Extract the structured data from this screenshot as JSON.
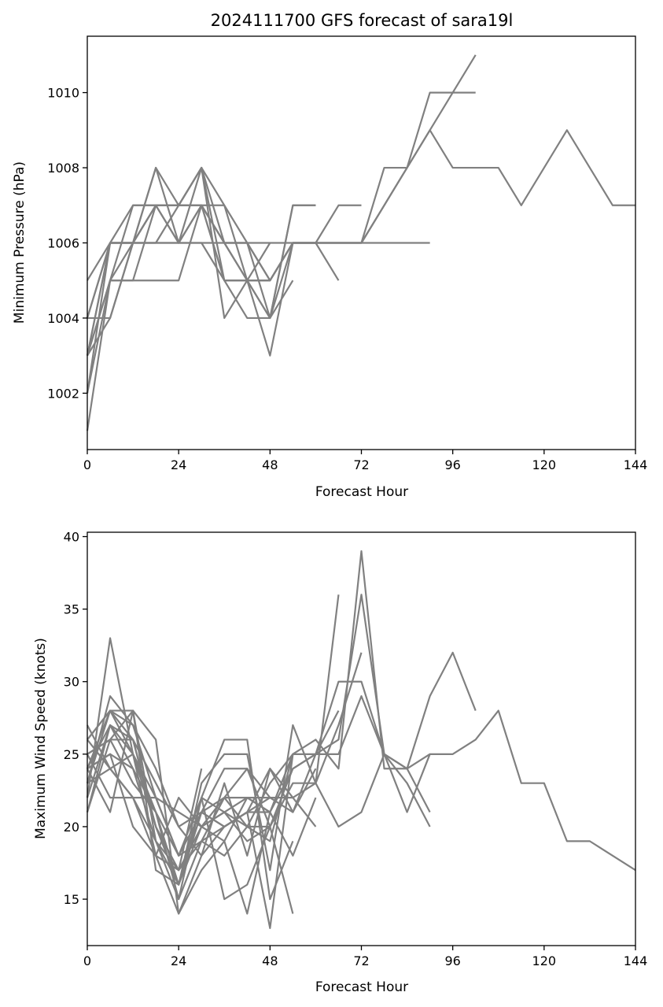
{
  "chart_data": [
    {
      "type": "line",
      "title": "2024111700 GFS forecast of sara19l",
      "xlabel": "Forecast Hour",
      "ylabel": "Minimum Pressure (hPa)",
      "xlim": [
        0,
        144
      ],
      "ylim": [
        1000.5,
        1011.5
      ],
      "xticks": [
        0,
        24,
        48,
        72,
        96,
        120,
        144
      ],
      "yticks": [
        1002,
        1004,
        1006,
        1008,
        1010
      ],
      "line_color": "#808080",
      "series": [
        {
          "x": [
            0,
            6,
            12,
            18,
            24,
            30,
            36,
            42,
            48,
            54,
            60,
            66,
            72,
            78,
            84,
            90,
            96,
            102
          ],
          "y": [
            1003,
            1006,
            1006,
            1006,
            1006,
            1006,
            1005,
            1005,
            1005,
            1006,
            1006,
            1006,
            1006,
            1008,
            1008,
            1010,
            1010,
            1010
          ]
        },
        {
          "x": [
            0,
            6,
            12,
            18,
            24,
            30,
            36,
            42,
            48,
            54,
            60,
            66,
            72,
            78,
            84,
            90,
            96,
            102,
            108,
            114,
            120,
            126,
            132,
            138,
            144
          ],
          "y": [
            1001,
            1005,
            1005,
            1007,
            1007,
            1007,
            1005,
            1005,
            1004,
            1006,
            1006,
            1006,
            1006,
            1007,
            1008,
            1009,
            1008,
            1008,
            1008,
            1007,
            1008,
            1009,
            1008,
            1007,
            1007
          ]
        },
        {
          "x": [
            0,
            6,
            12,
            18,
            24,
            30,
            36,
            42,
            48,
            54,
            60,
            66,
            72,
            78,
            84,
            90
          ],
          "y": [
            1002,
            1006,
            1006,
            1006,
            1006,
            1006,
            1006,
            1006,
            1006,
            1006,
            1006,
            1006,
            1006,
            1006,
            1006,
            1006
          ]
        },
        {
          "x": [
            0,
            6,
            12,
            18,
            24,
            30,
            36,
            42,
            48,
            54,
            60,
            66,
            72,
            78,
            84,
            90,
            96,
            102
          ],
          "y": [
            1004,
            1006,
            1006,
            1008,
            1007,
            1007,
            1006,
            1006,
            1005,
            1006,
            1006,
            1006,
            1006,
            1007,
            1008,
            1009,
            1010,
            1011
          ]
        },
        {
          "x": [
            0,
            6,
            12,
            18,
            24,
            30,
            36,
            42,
            48,
            54,
            60,
            66
          ],
          "y": [
            1005,
            1006,
            1007,
            1007,
            1007,
            1008,
            1006,
            1005,
            1005,
            1006,
            1006,
            1005
          ]
        },
        {
          "x": [
            0,
            6,
            12,
            18,
            24,
            30,
            36,
            42,
            48,
            54,
            60,
            66,
            72
          ],
          "y": [
            1003,
            1006,
            1006,
            1007,
            1006,
            1007,
            1005,
            1005,
            1005,
            1006,
            1006,
            1007,
            1007
          ]
        },
        {
          "x": [
            0,
            6,
            12,
            18,
            24,
            30,
            36,
            42,
            48,
            54,
            60
          ],
          "y": [
            1002,
            1005,
            1006,
            1007,
            1007,
            1008,
            1005,
            1004,
            1004,
            1007,
            1007
          ]
        },
        {
          "x": [
            0,
            6,
            12,
            18,
            24,
            30,
            36,
            42,
            48,
            54,
            60
          ],
          "y": [
            1003,
            1005,
            1005,
            1005,
            1005,
            1007,
            1007,
            1005,
            1004,
            1007,
            1007
          ]
        },
        {
          "x": [
            0,
            6,
            12,
            18,
            24,
            30,
            36,
            42,
            48,
            54
          ],
          "y": [
            1004,
            1004,
            1006,
            1007,
            1006,
            1007,
            1006,
            1005,
            1003,
            1006
          ]
        },
        {
          "x": [
            0,
            6,
            12,
            18,
            24,
            30,
            36,
            42,
            48,
            54
          ],
          "y": [
            1003,
            1005,
            1007,
            1007,
            1007,
            1007,
            1006,
            1006,
            1004,
            1005
          ]
        },
        {
          "x": [
            0,
            6,
            12,
            18,
            24,
            30,
            36,
            42,
            48
          ],
          "y": [
            1003,
            1004,
            1006,
            1008,
            1006,
            1008,
            1004,
            1005,
            1006
          ]
        },
        {
          "x": [
            0,
            6,
            12,
            18,
            24,
            30,
            36,
            42,
            48
          ],
          "y": [
            1004,
            1006,
            1006,
            1006,
            1007,
            1008,
            1007,
            1006,
            1005
          ]
        }
      ]
    },
    {
      "type": "line",
      "title": "",
      "xlabel": "Forecast Hour",
      "ylabel": "Maximum Wind Speed (knots)",
      "xlim": [
        0,
        144
      ],
      "ylim": [
        11.8,
        40.3
      ],
      "xticks": [
        0,
        24,
        48,
        72,
        96,
        120,
        144
      ],
      "yticks": [
        15,
        20,
        25,
        30,
        35,
        40
      ],
      "line_color": "#808080",
      "series": [
        {
          "x": [
            0,
            6,
            12,
            18,
            24,
            30,
            36,
            42,
            48,
            54,
            60,
            66,
            72,
            78,
            84,
            90,
            96,
            102,
            108,
            114,
            120,
            126,
            132,
            138,
            144
          ],
          "y": [
            26,
            28,
            26,
            20,
            17,
            19,
            20,
            21,
            21,
            24,
            25,
            25,
            29,
            25,
            24,
            25,
            25,
            26,
            28,
            23,
            23,
            19,
            19,
            18,
            17
          ]
        },
        {
          "x": [
            0,
            6,
            12,
            18,
            24,
            30,
            36,
            42,
            48,
            54,
            60,
            66,
            72,
            78,
            84,
            90,
            96,
            102
          ],
          "y": [
            24,
            27,
            24,
            19,
            16,
            20,
            21,
            22,
            21,
            25,
            26,
            24,
            39,
            24,
            24,
            29,
            32,
            28
          ]
        },
        {
          "x": [
            0,
            6,
            12,
            18,
            24,
            30,
            36,
            42,
            48,
            54,
            60,
            66,
            72,
            78,
            84,
            90
          ],
          "y": [
            22,
            33,
            25,
            18,
            14,
            18,
            20,
            21,
            22,
            22,
            23,
            20,
            21,
            25,
            24,
            21
          ]
        },
        {
          "x": [
            0,
            6,
            12,
            18,
            24,
            30,
            36,
            42,
            48,
            54,
            60,
            66,
            72,
            78,
            84,
            90
          ],
          "y": [
            25,
            26,
            23,
            21,
            15,
            19,
            22,
            24,
            20,
            24,
            25,
            30,
            30,
            25,
            21,
            25
          ]
        },
        {
          "x": [
            0,
            6,
            12,
            18,
            24,
            30,
            36,
            42,
            48,
            54,
            60,
            66,
            72,
            78,
            84,
            90
          ],
          "y": [
            23,
            24,
            22,
            19,
            17,
            20,
            21,
            20,
            23,
            25,
            25,
            26,
            36,
            25,
            23,
            20
          ]
        },
        {
          "x": [
            0,
            6,
            12,
            18,
            24,
            30,
            36,
            42,
            48,
            54,
            60,
            66,
            72
          ],
          "y": [
            24,
            25,
            24,
            21,
            18,
            22,
            21,
            19,
            20,
            23,
            23,
            27,
            32
          ]
        },
        {
          "x": [
            0,
            6,
            12,
            18,
            24,
            30,
            36,
            42,
            48,
            54,
            60,
            66
          ],
          "y": [
            21,
            27,
            26,
            20,
            16,
            23,
            25,
            25,
            17,
            27,
            23,
            36
          ]
        },
        {
          "x": [
            0,
            6,
            12,
            18,
            24,
            30,
            36,
            42,
            48,
            54,
            60,
            66
          ],
          "y": [
            26,
            28,
            25,
            22,
            18,
            21,
            24,
            24,
            22,
            21,
            25,
            28
          ]
        },
        {
          "x": [
            0,
            6,
            12,
            18,
            24,
            30,
            36,
            42,
            48,
            54,
            60
          ],
          "y": [
            23,
            29,
            27,
            24,
            20,
            21,
            20,
            21,
            24,
            22,
            20
          ]
        },
        {
          "x": [
            0,
            6,
            12,
            18,
            24,
            30,
            36,
            42,
            48,
            54,
            60
          ],
          "y": [
            24,
            28,
            27,
            22,
            21,
            20,
            19,
            22,
            21,
            18,
            22
          ]
        },
        {
          "x": [
            0,
            6,
            12,
            18,
            24,
            30,
            36,
            42,
            48,
            54,
            60
          ],
          "y": [
            25,
            26,
            26,
            23,
            20,
            18,
            23,
            18,
            24,
            21,
            24
          ]
        },
        {
          "x": [
            0,
            6,
            12,
            18,
            24,
            30,
            36,
            42,
            48,
            54
          ],
          "y": [
            27,
            24,
            22,
            22,
            18,
            19,
            18,
            20,
            19,
            25
          ]
        },
        {
          "x": [
            0,
            6,
            12,
            18,
            24,
            30,
            36,
            42,
            48,
            54
          ],
          "y": [
            26,
            24,
            25,
            20,
            16,
            21,
            20,
            21,
            13,
            25
          ]
        },
        {
          "x": [
            0,
            6,
            12,
            18,
            24,
            30,
            36,
            42,
            48,
            54
          ],
          "y": [
            24,
            21,
            28,
            19,
            15,
            22,
            26,
            26,
            15,
            19
          ]
        },
        {
          "x": [
            0,
            6,
            12,
            18,
            24,
            30,
            36,
            42,
            48,
            54
          ],
          "y": [
            22,
            27,
            25,
            21,
            16,
            22,
            15,
            16,
            20,
            14
          ]
        },
        {
          "x": [
            0,
            6,
            12,
            18,
            24,
            30,
            36,
            42,
            48
          ],
          "y": [
            21,
            26,
            28,
            26,
            14,
            17,
            19,
            14,
            21
          ]
        },
        {
          "x": [
            0,
            6,
            12,
            18,
            24,
            30,
            36,
            42,
            48
          ],
          "y": [
            23,
            28,
            28,
            17,
            16,
            21,
            22,
            22,
            22
          ]
        },
        {
          "x": [
            0,
            6,
            12,
            18,
            24,
            30,
            36,
            42,
            48
          ],
          "y": [
            25,
            22,
            22,
            18,
            22,
            20,
            22,
            20,
            20
          ]
        },
        {
          "x": [
            0,
            6,
            12,
            18,
            24,
            30
          ],
          "y": [
            24,
            25,
            20,
            18,
            17,
            24
          ]
        }
      ]
    }
  ]
}
